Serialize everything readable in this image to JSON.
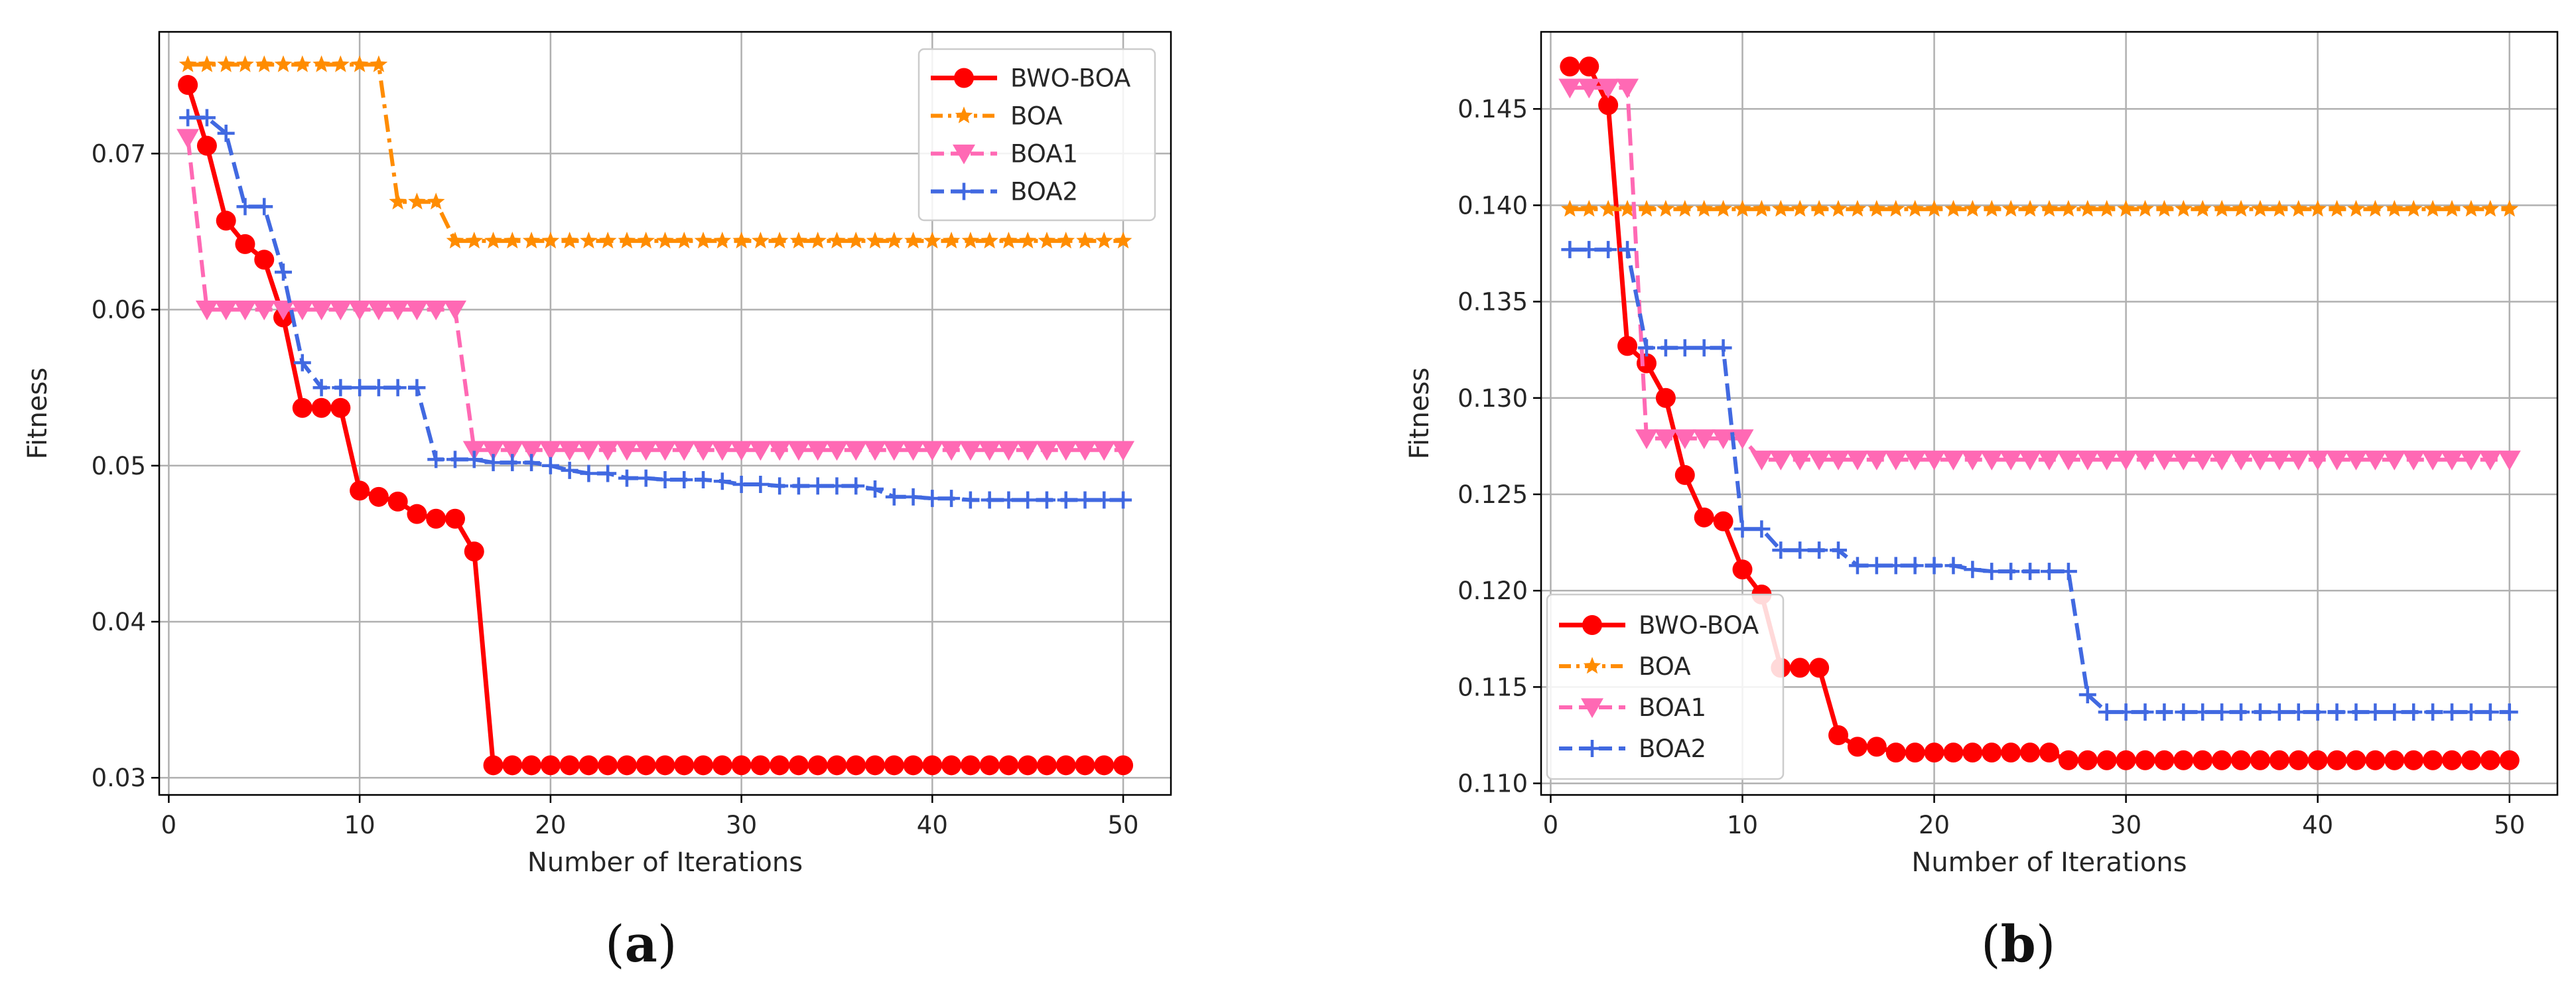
{
  "chart_data": [
    {
      "type": "line",
      "panel_label": "a",
      "caption_open": "(",
      "caption_close": ")",
      "title": "",
      "xlabel": "Number of Iterations",
      "ylabel": "Fitness",
      "xlim": [
        -0.5,
        52.5
      ],
      "ylim": [
        0.0289,
        0.0778
      ],
      "xticks": [
        0,
        10,
        20,
        30,
        40,
        50
      ],
      "yticks": [
        0.03,
        0.04,
        0.05,
        0.06,
        0.07
      ],
      "ytick_labels": [
        "0.03",
        "0.04",
        "0.05",
        "0.06",
        "0.07"
      ],
      "grid": true,
      "legend_location": "upper-right",
      "x": [
        1,
        2,
        3,
        4,
        5,
        6,
        7,
        8,
        9,
        10,
        11,
        12,
        13,
        14,
        15,
        16,
        17,
        18,
        19,
        20,
        21,
        22,
        23,
        24,
        25,
        26,
        27,
        28,
        29,
        30,
        31,
        32,
        33,
        34,
        35,
        36,
        37,
        38,
        39,
        40,
        41,
        42,
        43,
        44,
        45,
        46,
        47,
        48,
        49,
        50
      ],
      "series": [
        {
          "name": "BWO-BOA",
          "color": "#ff0000",
          "linestyle": "solid",
          "marker": "circle",
          "values": [
            0.0744,
            0.0705,
            0.0657,
            0.0642,
            0.0632,
            0.0595,
            0.0537,
            0.0537,
            0.0537,
            0.0484,
            0.048,
            0.0477,
            0.0469,
            0.0466,
            0.0466,
            0.0445,
            0.0308,
            0.0308,
            0.0308,
            0.0308,
            0.0308,
            0.0308,
            0.0308,
            0.0308,
            0.0308,
            0.0308,
            0.0308,
            0.0308,
            0.0308,
            0.0308,
            0.0308,
            0.0308,
            0.0308,
            0.0308,
            0.0308,
            0.0308,
            0.0308,
            0.0308,
            0.0308,
            0.0308,
            0.0308,
            0.0308,
            0.0308,
            0.0308,
            0.0308,
            0.0308,
            0.0308,
            0.0308,
            0.0308,
            0.0308
          ]
        },
        {
          "name": "BOA",
          "color": "#ff8c00",
          "linestyle": "dashdot",
          "marker": "star",
          "values": [
            0.0757,
            0.0757,
            0.0757,
            0.0757,
            0.0757,
            0.0757,
            0.0757,
            0.0757,
            0.0757,
            0.0757,
            0.0757,
            0.0669,
            0.0669,
            0.0669,
            0.0644,
            0.0644,
            0.0644,
            0.0644,
            0.0644,
            0.0644,
            0.0644,
            0.0644,
            0.0644,
            0.0644,
            0.0644,
            0.0644,
            0.0644,
            0.0644,
            0.0644,
            0.0644,
            0.0644,
            0.0644,
            0.0644,
            0.0644,
            0.0644,
            0.0644,
            0.0644,
            0.0644,
            0.0644,
            0.0644,
            0.0644,
            0.0644,
            0.0644,
            0.0644,
            0.0644,
            0.0644,
            0.0644,
            0.0644,
            0.0644,
            0.0644
          ]
        },
        {
          "name": "BOA1",
          "color": "#ff69b4",
          "linestyle": "dashed",
          "marker": "triangle-down",
          "values": [
            0.071,
            0.06,
            0.06,
            0.06,
            0.06,
            0.06,
            0.06,
            0.06,
            0.06,
            0.06,
            0.06,
            0.06,
            0.06,
            0.06,
            0.06,
            0.051,
            0.051,
            0.051,
            0.051,
            0.051,
            0.051,
            0.051,
            0.051,
            0.051,
            0.051,
            0.051,
            0.051,
            0.051,
            0.051,
            0.051,
            0.051,
            0.051,
            0.051,
            0.051,
            0.051,
            0.051,
            0.051,
            0.051,
            0.051,
            0.051,
            0.051,
            0.051,
            0.051,
            0.051,
            0.051,
            0.051,
            0.051,
            0.051,
            0.051,
            0.051
          ]
        },
        {
          "name": "BOA2",
          "color": "#4169e1",
          "linestyle": "dashed",
          "marker": "plus",
          "values": [
            0.0723,
            0.0723,
            0.0713,
            0.0666,
            0.0666,
            0.0624,
            0.0566,
            0.055,
            0.055,
            0.055,
            0.055,
            0.055,
            0.055,
            0.0504,
            0.0504,
            0.0504,
            0.0502,
            0.0502,
            0.0502,
            0.05,
            0.0497,
            0.0495,
            0.0495,
            0.0492,
            0.0492,
            0.0491,
            0.0491,
            0.0491,
            0.049,
            0.0488,
            0.0488,
            0.0487,
            0.0487,
            0.0487,
            0.0487,
            0.0487,
            0.0485,
            0.048,
            0.048,
            0.0479,
            0.0479,
            0.0478,
            0.0478,
            0.0478,
            0.0478,
            0.0478,
            0.0478,
            0.0478,
            0.0478,
            0.0478
          ]
        }
      ]
    },
    {
      "type": "line",
      "panel_label": "b",
      "caption_open": "(",
      "caption_close": ")",
      "title": "",
      "xlabel": "Number of Iterations",
      "ylabel": "Fitness",
      "xlim": [
        -0.5,
        52.5
      ],
      "ylim": [
        0.1094,
        0.149
      ],
      "xticks": [
        0,
        10,
        20,
        30,
        40,
        50
      ],
      "yticks": [
        0.11,
        0.115,
        0.12,
        0.125,
        0.13,
        0.135,
        0.14,
        0.145
      ],
      "ytick_labels": [
        "0.110",
        "0.115",
        "0.120",
        "0.125",
        "0.130",
        "0.135",
        "0.140",
        "0.145"
      ],
      "grid": true,
      "legend_location": "lower-left",
      "x": [
        1,
        2,
        3,
        4,
        5,
        6,
        7,
        8,
        9,
        10,
        11,
        12,
        13,
        14,
        15,
        16,
        17,
        18,
        19,
        20,
        21,
        22,
        23,
        24,
        25,
        26,
        27,
        28,
        29,
        30,
        31,
        32,
        33,
        34,
        35,
        36,
        37,
        38,
        39,
        40,
        41,
        42,
        43,
        44,
        45,
        46,
        47,
        48,
        49,
        50
      ],
      "series": [
        {
          "name": "BWO-BOA",
          "color": "#ff0000",
          "linestyle": "solid",
          "marker": "circle",
          "values": [
            0.1472,
            0.1472,
            0.1452,
            0.1327,
            0.1318,
            0.13,
            0.126,
            0.1238,
            0.1236,
            0.1211,
            0.1198,
            0.116,
            0.116,
            0.116,
            0.1125,
            0.1119,
            0.1119,
            0.1116,
            0.1116,
            0.1116,
            0.1116,
            0.1116,
            0.1116,
            0.1116,
            0.1116,
            0.1116,
            0.1112,
            0.1112,
            0.1112,
            0.1112,
            0.1112,
            0.1112,
            0.1112,
            0.1112,
            0.1112,
            0.1112,
            0.1112,
            0.1112,
            0.1112,
            0.1112,
            0.1112,
            0.1112,
            0.1112,
            0.1112,
            0.1112,
            0.1112,
            0.1112,
            0.1112,
            0.1112,
            0.1112
          ]
        },
        {
          "name": "BOA",
          "color": "#ff8c00",
          "linestyle": "dashdot",
          "marker": "star",
          "values": [
            0.1398,
            0.1398,
            0.1398,
            0.1398,
            0.1398,
            0.1398,
            0.1398,
            0.1398,
            0.1398,
            0.1398,
            0.1398,
            0.1398,
            0.1398,
            0.1398,
            0.1398,
            0.1398,
            0.1398,
            0.1398,
            0.1398,
            0.1398,
            0.1398,
            0.1398,
            0.1398,
            0.1398,
            0.1398,
            0.1398,
            0.1398,
            0.1398,
            0.1398,
            0.1398,
            0.1398,
            0.1398,
            0.1398,
            0.1398,
            0.1398,
            0.1398,
            0.1398,
            0.1398,
            0.1398,
            0.1398,
            0.1398,
            0.1398,
            0.1398,
            0.1398,
            0.1398,
            0.1398,
            0.1398,
            0.1398,
            0.1398,
            0.1398
          ]
        },
        {
          "name": "BOA1",
          "color": "#ff69b4",
          "linestyle": "dashed",
          "marker": "triangle-down",
          "values": [
            0.1461,
            0.1461,
            0.1461,
            0.1461,
            0.1279,
            0.1279,
            0.1279,
            0.1279,
            0.1279,
            0.1279,
            0.1268,
            0.1268,
            0.1268,
            0.1268,
            0.1268,
            0.1268,
            0.1268,
            0.1268,
            0.1268,
            0.1268,
            0.1268,
            0.1268,
            0.1268,
            0.1268,
            0.1268,
            0.1268,
            0.1268,
            0.1268,
            0.1268,
            0.1268,
            0.1268,
            0.1268,
            0.1268,
            0.1268,
            0.1268,
            0.1268,
            0.1268,
            0.1268,
            0.1268,
            0.1268,
            0.1268,
            0.1268,
            0.1268,
            0.1268,
            0.1268,
            0.1268,
            0.1268,
            0.1268,
            0.1268,
            0.1268
          ]
        },
        {
          "name": "BOA2",
          "color": "#4169e1",
          "linestyle": "dashed",
          "marker": "plus",
          "values": [
            0.1377,
            0.1377,
            0.1377,
            0.1377,
            0.1326,
            0.1326,
            0.1326,
            0.1326,
            0.1326,
            0.1232,
            0.1232,
            0.1221,
            0.1221,
            0.1221,
            0.1221,
            0.1213,
            0.1213,
            0.1213,
            0.1213,
            0.1213,
            0.1213,
            0.1211,
            0.121,
            0.121,
            0.121,
            0.121,
            0.121,
            0.1146,
            0.1137,
            0.1137,
            0.1137,
            0.1137,
            0.1137,
            0.1137,
            0.1137,
            0.1137,
            0.1137,
            0.1137,
            0.1137,
            0.1137,
            0.1137,
            0.1137,
            0.1137,
            0.1137,
            0.1137,
            0.1137,
            0.1137,
            0.1137,
            0.1137,
            0.1137
          ]
        }
      ]
    }
  ]
}
